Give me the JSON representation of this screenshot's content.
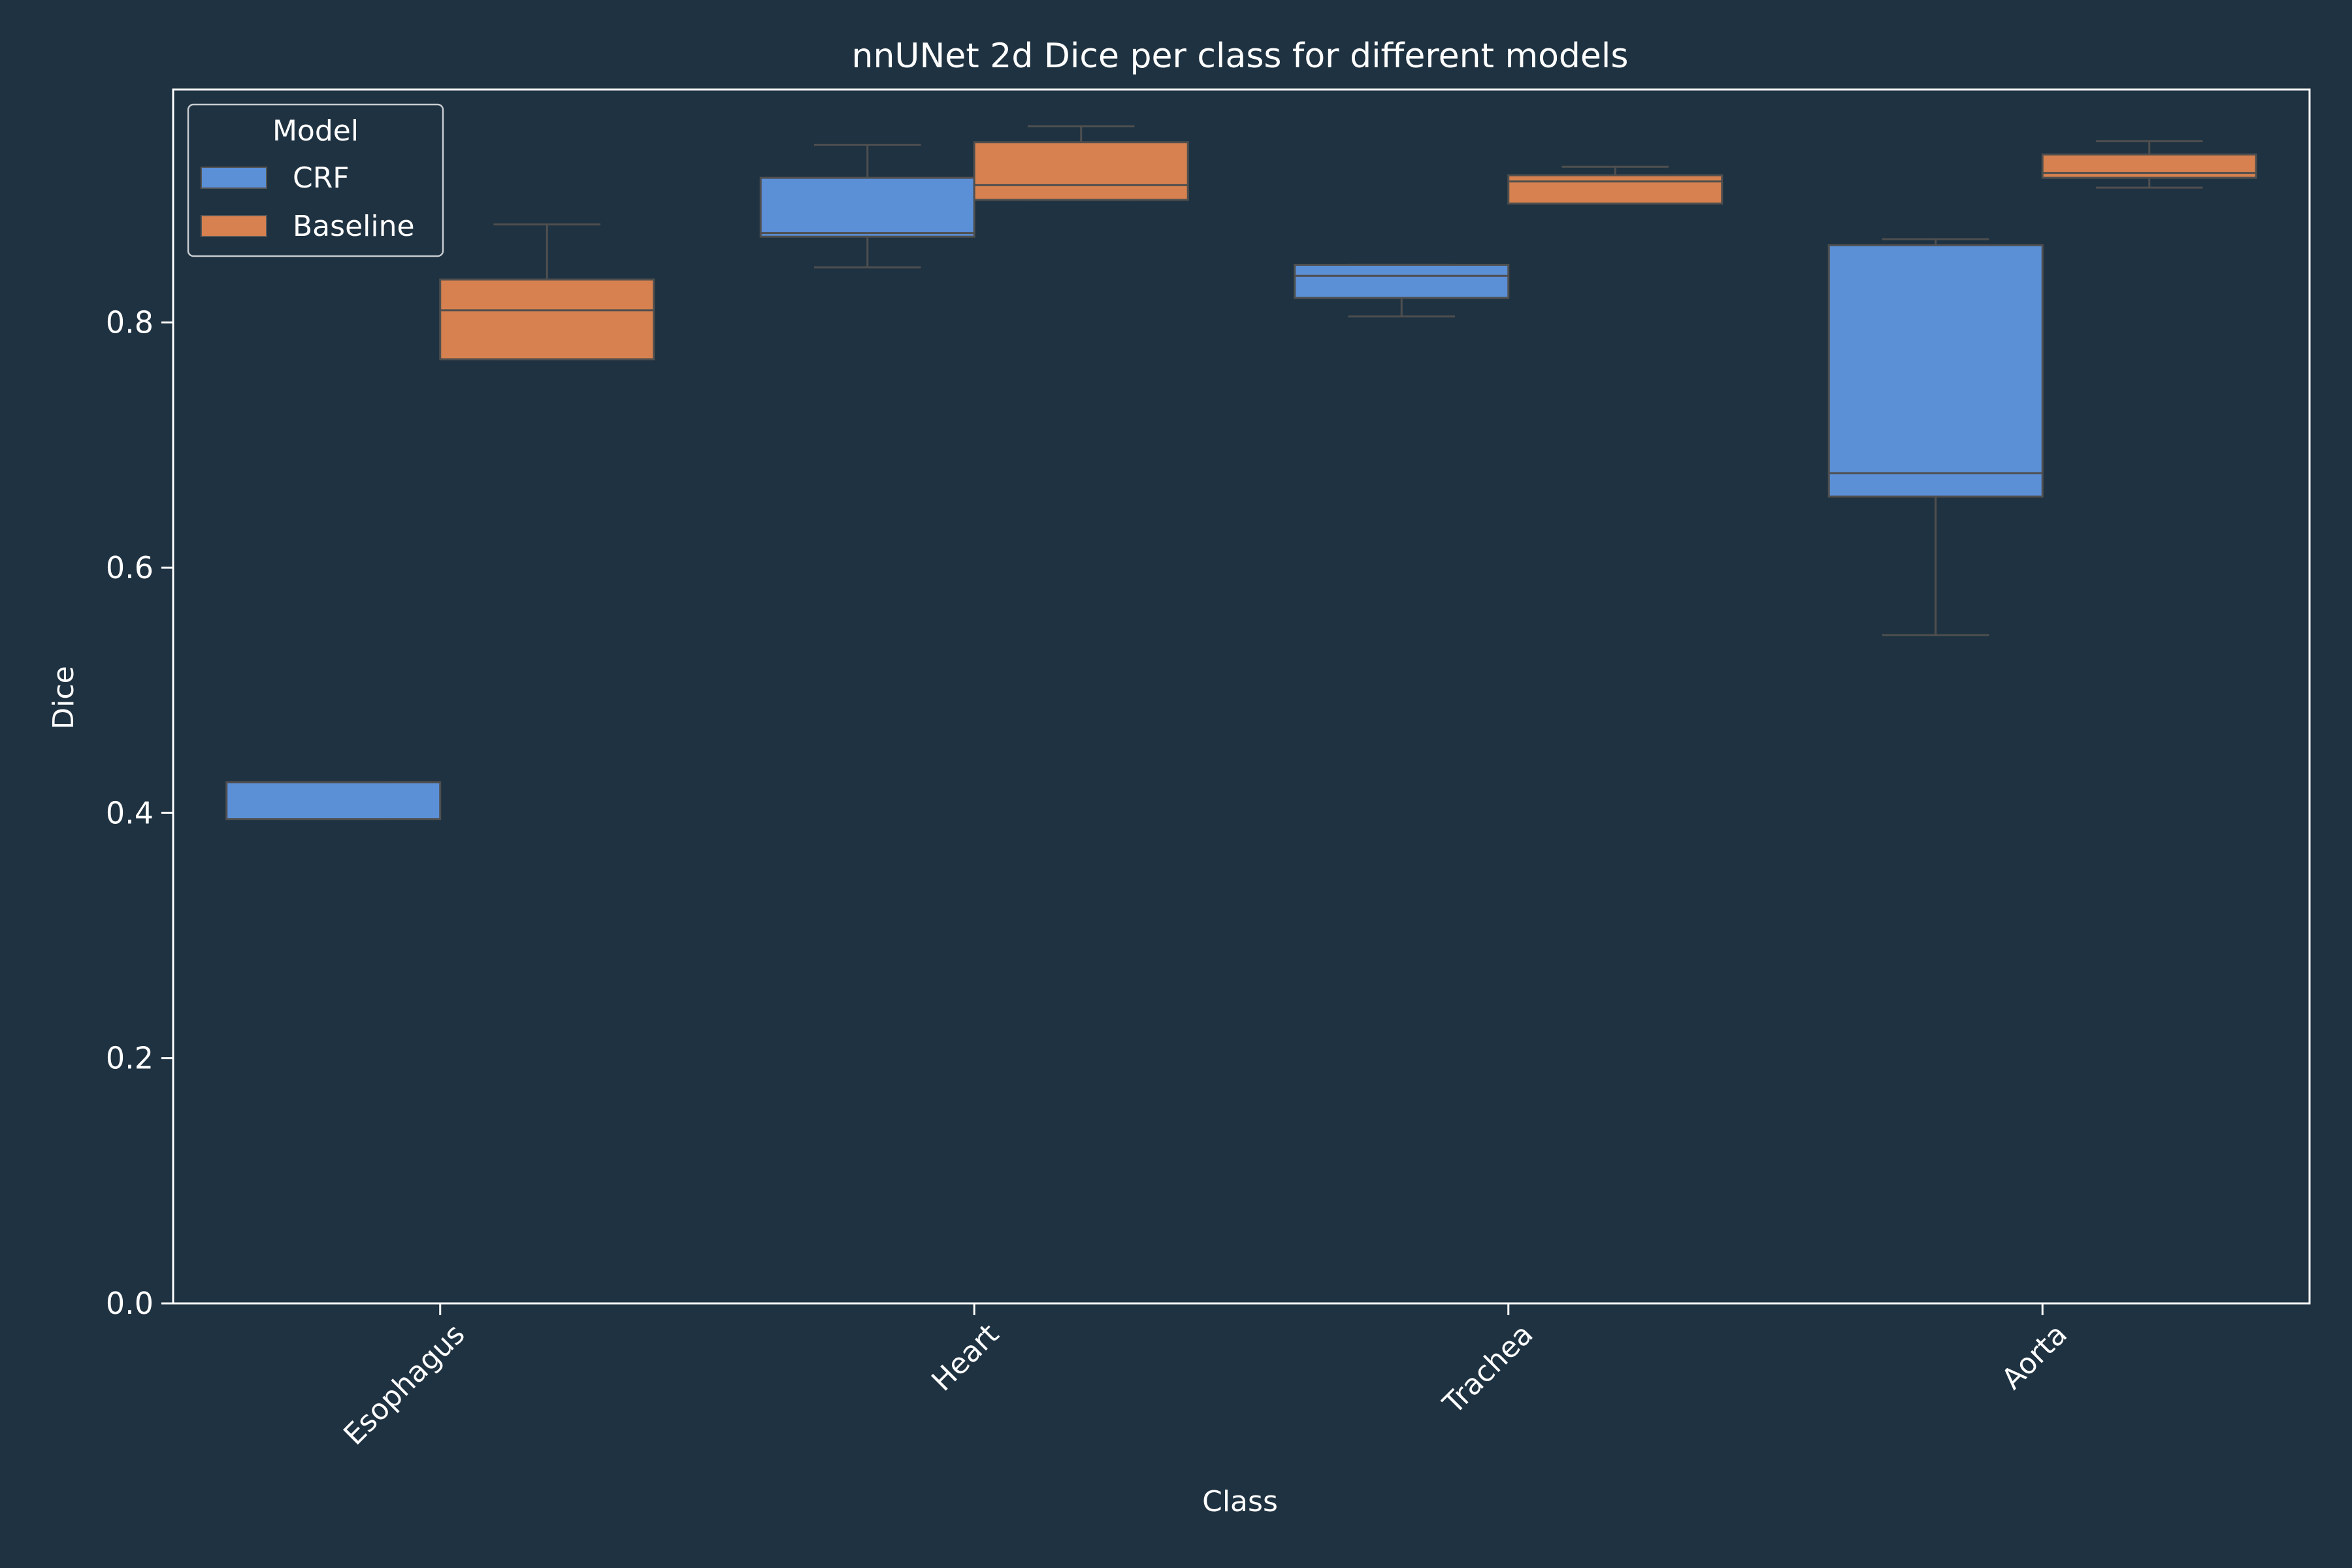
{
  "chart_data": {
    "type": "box",
    "title": "nnUNet 2d Dice per class for different models",
    "xlabel": "Class",
    "ylabel": "Dice",
    "categories": [
      "Esophagus",
      "Heart",
      "Trachea",
      "Aorta"
    ],
    "ylim": [
      0,
      0.99
    ],
    "yticks": [
      0.0,
      0.2,
      0.4,
      0.6,
      0.8
    ],
    "ytick_labels": [
      "0.0",
      "0.2",
      "0.4",
      "0.6",
      "0.8"
    ],
    "grid": false,
    "legend": {
      "title": "Model",
      "placement": "top-left"
    },
    "series": [
      {
        "name": "CRF",
        "color": "#5b8fd6",
        "boxes": [
          {
            "whislo": 0.395,
            "q1": 0.395,
            "med": 0.425,
            "q3": 0.425,
            "whishi": 0.425
          },
          {
            "whislo": 0.845,
            "q1": 0.87,
            "med": 0.873,
            "q3": 0.918,
            "whishi": 0.945
          },
          {
            "whislo": 0.805,
            "q1": 0.82,
            "med": 0.838,
            "q3": 0.847,
            "whishi": 0.847
          },
          {
            "whislo": 0.545,
            "q1": 0.658,
            "med": 0.677,
            "q3": 0.863,
            "whishi": 0.868
          }
        ]
      },
      {
        "name": "Baseline",
        "color": "#d6814f",
        "boxes": [
          {
            "whislo": 0.77,
            "q1": 0.77,
            "med": 0.81,
            "q3": 0.835,
            "whishi": 0.88
          },
          {
            "whislo": 0.9,
            "q1": 0.9,
            "med": 0.912,
            "q3": 0.947,
            "whishi": 0.96
          },
          {
            "whislo": 0.897,
            "q1": 0.897,
            "med": 0.915,
            "q3": 0.92,
            "whishi": 0.927
          },
          {
            "whislo": 0.91,
            "q1": 0.918,
            "med": 0.922,
            "q3": 0.937,
            "whishi": 0.948
          }
        ]
      }
    ]
  }
}
